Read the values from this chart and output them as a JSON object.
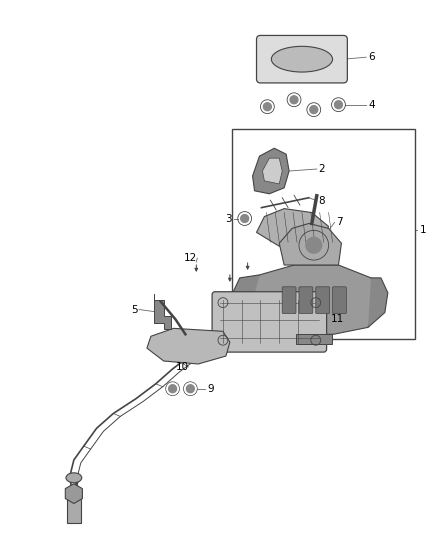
{
  "background_color": "#ffffff",
  "fig_width": 4.38,
  "fig_height": 5.33,
  "dpi": 100,
  "line_color": "#666666",
  "dark_gray": "#444444",
  "mid_gray": "#888888",
  "light_gray": "#cccccc",
  "label_fontsize": 7.5
}
